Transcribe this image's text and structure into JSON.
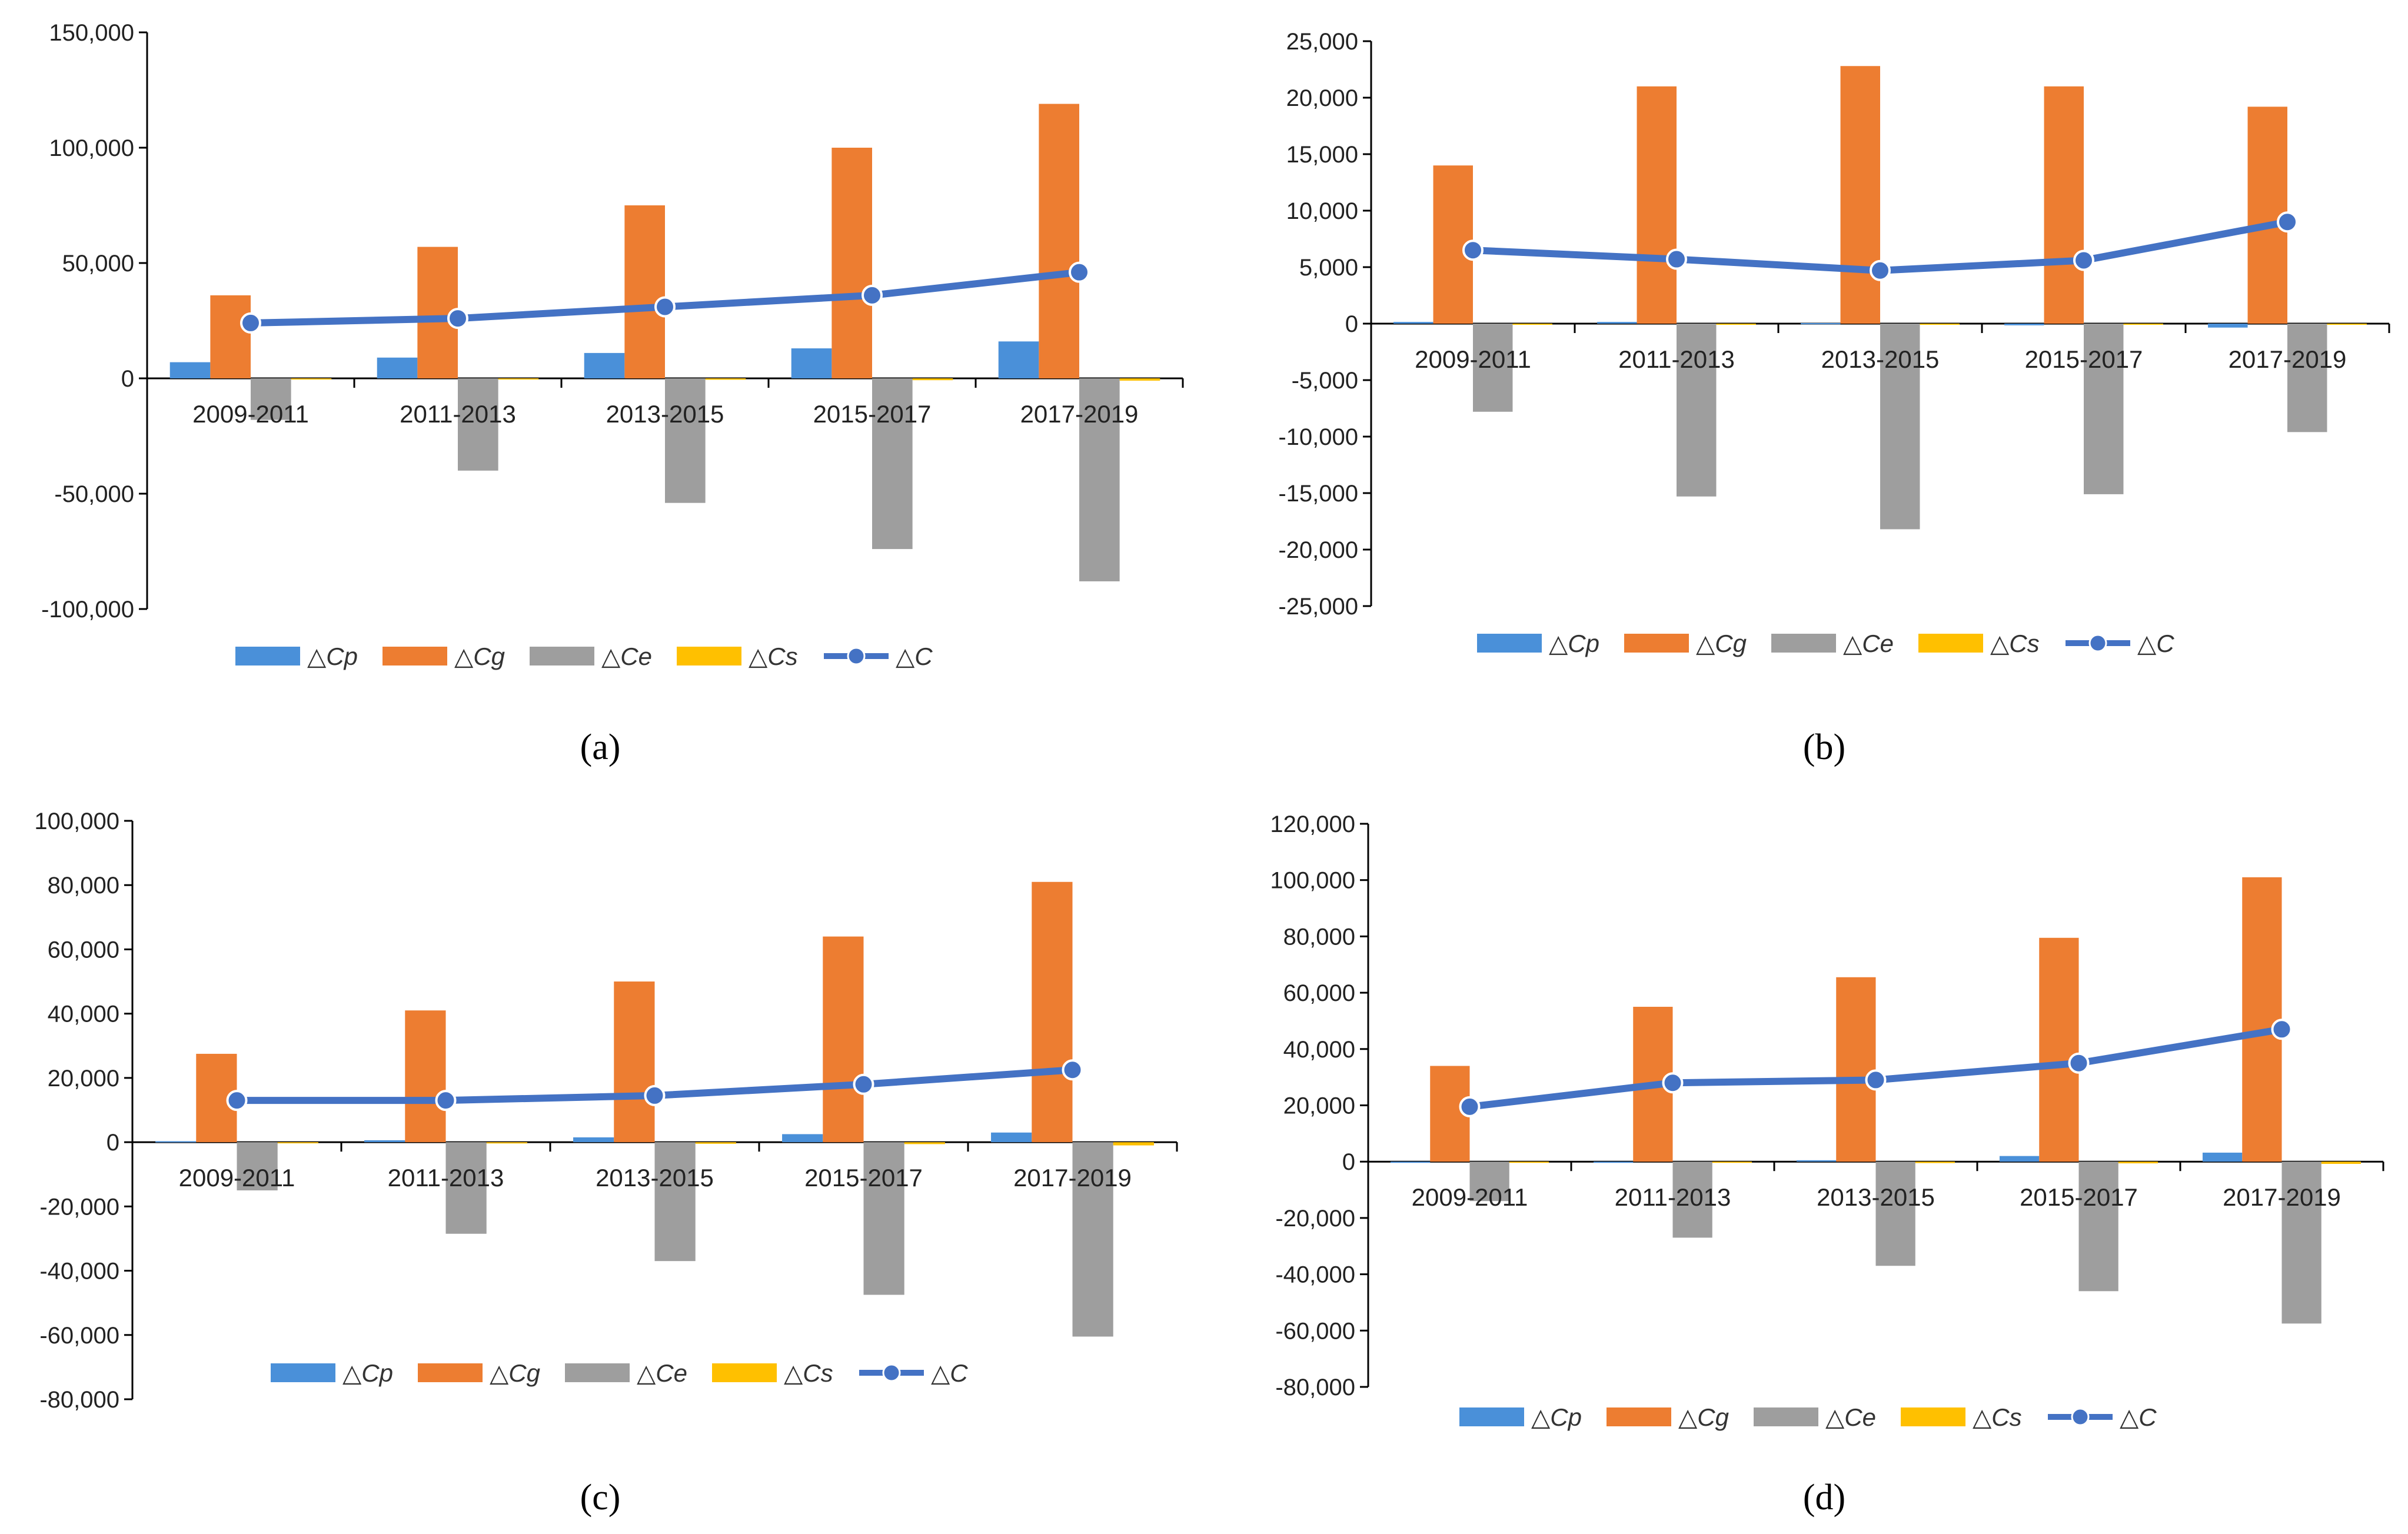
{
  "colors": {
    "Cp": "#4a90d9",
    "Cg": "#ed7d31",
    "Ce": "#9e9e9e",
    "Cs": "#ffc000",
    "C": "#4472c4",
    "axis": "#000000"
  },
  "legend": [
    "△Cp",
    "△Cg",
    "△Ce",
    "△Cs",
    "△C"
  ],
  "chart_data": [
    {
      "type": "bar",
      "panel": "a",
      "categories": [
        "2009-2011",
        "2011-2013",
        "2013-2015",
        "2015-2017",
        "2017-2019"
      ],
      "yticks": [
        -100000,
        -50000,
        0,
        50000,
        100000,
        150000
      ],
      "ytick_labels": [
        "-100,000",
        "-50,000",
        "0",
        "50,000",
        "100,000",
        "150,000"
      ],
      "ylim": [
        -100000,
        150000
      ],
      "series": [
        {
          "name": "△Cp",
          "type": "bar",
          "values": [
            7000,
            9000,
            11000,
            13000,
            16000
          ]
        },
        {
          "name": "△Cg",
          "type": "bar",
          "values": [
            36000,
            57000,
            75000,
            100000,
            119000
          ]
        },
        {
          "name": "△Ce",
          "type": "bar",
          "values": [
            -18000,
            -40000,
            -54000,
            -74000,
            -88000
          ]
        },
        {
          "name": "△Cs",
          "type": "bar",
          "values": [
            -300,
            -500,
            -600,
            -800,
            -1000
          ]
        },
        {
          "name": "△C",
          "type": "line",
          "values": [
            24000,
            26000,
            31000,
            36000,
            46000
          ]
        }
      ]
    },
    {
      "type": "bar",
      "panel": "b",
      "categories": [
        "2009-2011",
        "2011-2013",
        "2013-2015",
        "2015-2017",
        "2017-2019"
      ],
      "yticks": [
        -25000,
        -20000,
        -15000,
        -10000,
        -5000,
        0,
        5000,
        10000,
        15000,
        20000,
        25000
      ],
      "ytick_labels": [
        "-25,000",
        "-20,000",
        "-15,000",
        "-10,000",
        "-5,000",
        "0",
        "5,000",
        "10,000",
        "15,000",
        "20,000",
        "25,000"
      ],
      "ylim": [
        -25000,
        25000
      ],
      "series": [
        {
          "name": "△Cp",
          "type": "bar",
          "values": [
            150,
            150,
            50,
            -150,
            -350
          ]
        },
        {
          "name": "△Cg",
          "type": "bar",
          "values": [
            14000,
            21000,
            22800,
            21000,
            19200
          ]
        },
        {
          "name": "△Ce",
          "type": "bar",
          "values": [
            -7800,
            -15300,
            -18200,
            -15100,
            -9600
          ]
        },
        {
          "name": "△Cs",
          "type": "bar",
          "values": [
            -100,
            -100,
            -100,
            -100,
            -100
          ]
        },
        {
          "name": "△C",
          "type": "line",
          "values": [
            6500,
            5700,
            4700,
            5600,
            9000
          ]
        }
      ]
    },
    {
      "type": "bar",
      "panel": "c",
      "categories": [
        "2009-2011",
        "2011-2013",
        "2013-2015",
        "2015-2017",
        "2017-2019"
      ],
      "yticks": [
        -80000,
        -60000,
        -40000,
        -20000,
        0,
        20000,
        40000,
        60000,
        80000,
        100000
      ],
      "ytick_labels": [
        "-80,000",
        "-60,000",
        "-40,000",
        "-20,000",
        "0",
        "20,000",
        "40,000",
        "60,000",
        "80,000",
        "100,000"
      ],
      "ylim": [
        -80000,
        100000
      ],
      "series": [
        {
          "name": "△Cp",
          "type": "bar",
          "values": [
            300,
            600,
            1500,
            2500,
            3000
          ]
        },
        {
          "name": "△Cg",
          "type": "bar",
          "values": [
            27500,
            41000,
            50000,
            64000,
            81000
          ]
        },
        {
          "name": "△Ce",
          "type": "bar",
          "values": [
            -15000,
            -28500,
            -37000,
            -47500,
            -60500
          ]
        },
        {
          "name": "△Cs",
          "type": "bar",
          "values": [
            -300,
            -400,
            -500,
            -600,
            -1000
          ]
        },
        {
          "name": "△C",
          "type": "line",
          "values": [
            13000,
            13000,
            14500,
            18000,
            22500
          ]
        }
      ]
    },
    {
      "type": "bar",
      "panel": "d",
      "categories": [
        "2009-2011",
        "2011-2013",
        "2013-2015",
        "2015-2017",
        "2017-2019"
      ],
      "yticks": [
        -80000,
        -60000,
        -40000,
        -20000,
        0,
        20000,
        40000,
        60000,
        80000,
        100000,
        120000
      ],
      "ytick_labels": [
        "-80,000",
        "-60,000",
        "-40,000",
        "-20,000",
        "0",
        "20,000",
        "40,000",
        "60,000",
        "80,000",
        "100,000",
        "120,000"
      ],
      "ylim": [
        -80000,
        120000
      ],
      "series": [
        {
          "name": "△Cp",
          "type": "bar",
          "values": [
            -300,
            -300,
            500,
            2000,
            3200
          ]
        },
        {
          "name": "△Cg",
          "type": "bar",
          "values": [
            34000,
            55000,
            65500,
            79500,
            101000
          ]
        },
        {
          "name": "△Ce",
          "type": "bar",
          "values": [
            -14000,
            -27000,
            -37000,
            -46000,
            -57500
          ]
        },
        {
          "name": "△Cs",
          "type": "bar",
          "values": [
            -300,
            -400,
            -500,
            -600,
            -800
          ]
        },
        {
          "name": "△C",
          "type": "line",
          "values": [
            19500,
            28000,
            29000,
            35000,
            47000
          ]
        }
      ]
    }
  ],
  "panel_labels": {
    "a": "(a)",
    "b": "(b)",
    "c": "(c)",
    "d": "(d)"
  }
}
